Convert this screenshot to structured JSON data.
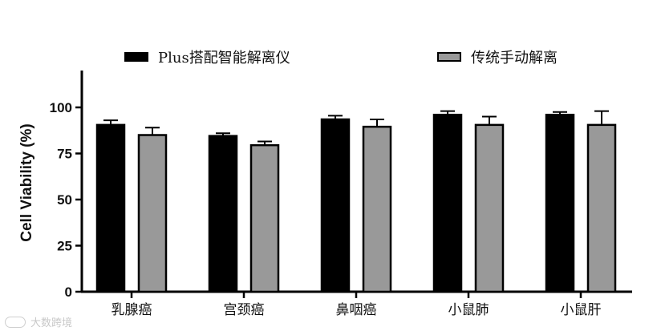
{
  "chart_data": {
    "type": "bar",
    "categories": [
      "乳腺癌",
      "宫颈癌",
      "鼻咽癌",
      "小鼠肺",
      "小鼠肝"
    ],
    "series": [
      {
        "name": "Plus搭配智能解离仪",
        "color": "#000000",
        "values": [
          90.5,
          84.5,
          93.5,
          96.0,
          96.0
        ],
        "errors": [
          2.5,
          1.5,
          2.0,
          2.0,
          1.5
        ]
      },
      {
        "name": "传统手动解离",
        "color": "#999999",
        "values": [
          85.0,
          79.5,
          89.5,
          90.5,
          90.5
        ],
        "errors": [
          4.0,
          2.0,
          4.0,
          4.5,
          7.5
        ]
      }
    ],
    "ylabel": "Cell Viability (%)",
    "ylim": [
      0,
      120
    ],
    "yticks": [
      0,
      25,
      50,
      75,
      100
    ],
    "grid": false,
    "legend_position": "top"
  },
  "watermark": {
    "text": "大数跨境"
  }
}
